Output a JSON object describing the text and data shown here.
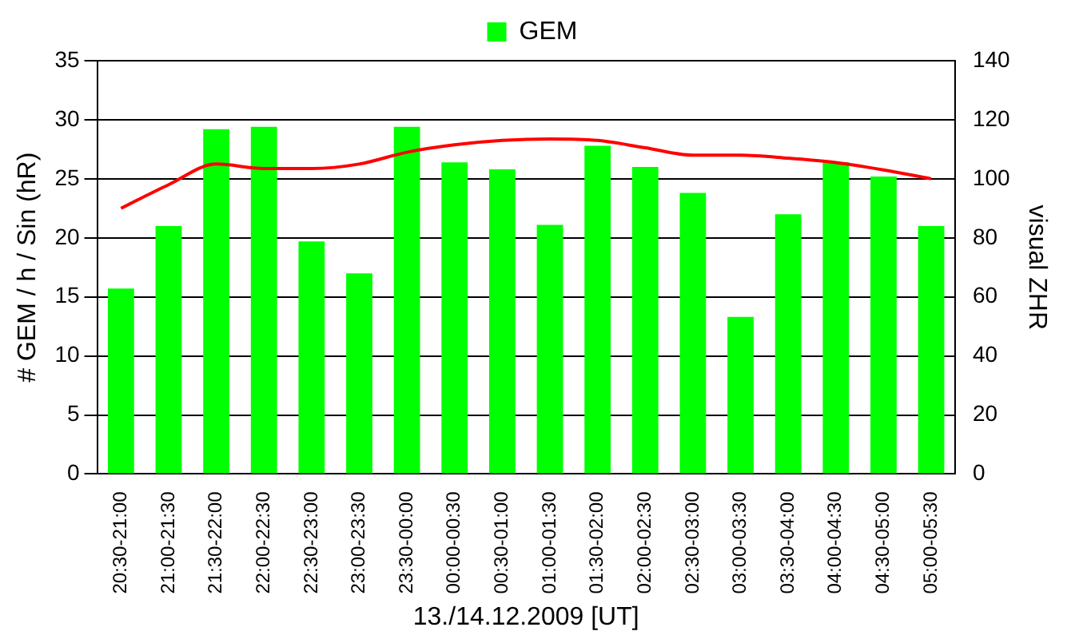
{
  "chart_data": {
    "type": "bar",
    "xlabel": "13./14.12.2009 [UT]",
    "ylabel": "# GEM / h / Sin (hR)",
    "y2label": "visual ZHR",
    "categories": [
      "20:30-21:00",
      "21:00-21:30",
      "21:30-22:00",
      "22:00-22:30",
      "22:30-23:00",
      "23:00-23:30",
      "23:30-00:00",
      "00:00-00:30",
      "00:30-01:00",
      "01:00-01:30",
      "01:30-02:00",
      "02:00-02:30",
      "02:30-03:00",
      "03:00-03:30",
      "03:30-04:00",
      "04:00-04:30",
      "04:30-05:00",
      "05:00-05:30"
    ],
    "series": [
      {
        "name": "GEM",
        "color": "#00ff00",
        "values": [
          15.7,
          21.0,
          29.2,
          29.4,
          19.7,
          17.0,
          29.4,
          26.4,
          25.8,
          21.1,
          27.8,
          26.0,
          23.8,
          13.3,
          22.0,
          26.4,
          25.2,
          21.0
        ]
      },
      {
        "type": "line",
        "axis": "y2",
        "color": "#ff0000",
        "values": [
          90,
          98,
          105,
          103.5,
          103.5,
          105,
          109,
          111.5,
          113,
          113.5,
          113,
          110.5,
          108,
          108,
          107,
          105.5,
          103,
          100
        ]
      }
    ],
    "ylim": [
      0,
      35
    ],
    "yticks": [
      0,
      5,
      10,
      15,
      20,
      25,
      30,
      35
    ],
    "y2lim": [
      0,
      140
    ],
    "y2ticks": [
      0,
      20,
      40,
      60,
      80,
      100,
      120,
      140
    ],
    "grid": "y",
    "legend": "top",
    "marker": "none"
  }
}
